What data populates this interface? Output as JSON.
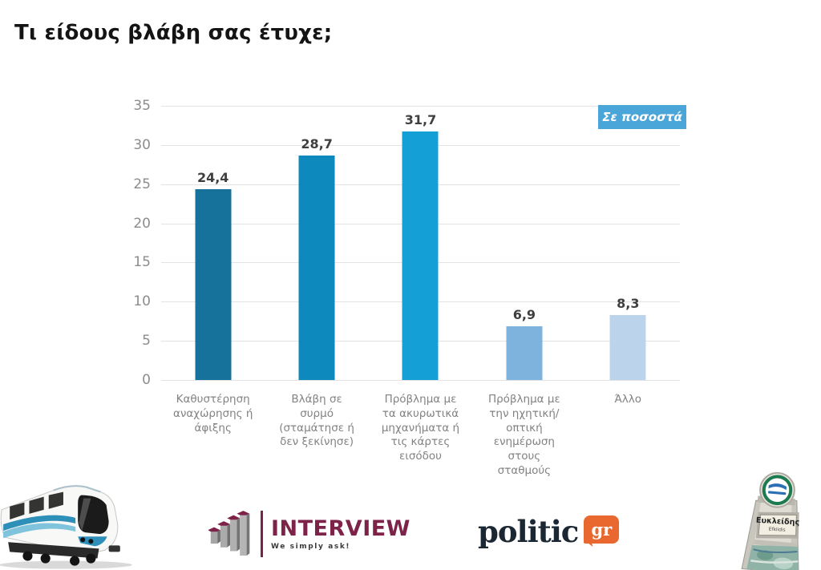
{
  "title": "Τι είδους βλάβη σας έτυχε;",
  "chart_data": {
    "type": "bar",
    "title": "Τι είδους βλάβη σας έτυχε;",
    "annotation_label": "Σε ποσοστά",
    "annotation_bg": "#4AA5D8",
    "categories": [
      "Καθυστέρηση αναχώρησης ή άφιξης",
      "Βλάβη σε συρμό (σταμάτησε ή δεν ξεκίνησε)",
      "Πρόβλημα με τα ακυρωτικά μηχανήματα ή τις κάρτες εισόδου",
      "Πρόβλημα με την ηχητική/οπτική ενημέρωση στους σταθμούς",
      "Άλλο"
    ],
    "values": [
      24.4,
      28.7,
      31.7,
      6.9,
      8.3
    ],
    "value_labels": [
      "24,4",
      "28,7",
      "31,7",
      "6,9",
      "8,3"
    ],
    "bar_colors": [
      "#16719B",
      "#0E89BE",
      "#14A0D6",
      "#7EB3DD",
      "#BCD4EB"
    ],
    "ylim": [
      0,
      35
    ],
    "yticks": [
      0,
      5,
      10,
      15,
      20,
      25,
      30,
      35
    ],
    "grid": true,
    "xlabel": "",
    "ylabel": "",
    "legend_position": "none"
  },
  "footer": {
    "interview": {
      "name": "INTERVIEW",
      "tagline": "We simply ask!",
      "brand_color": "#7D2248"
    },
    "politic": {
      "name": "politic",
      "suffix": "gr",
      "badge_color": "#E8682F",
      "text_color": "#1B2733"
    },
    "station_sign": {
      "greek": "Ευκλείδης",
      "latin": "Efklidis"
    }
  }
}
